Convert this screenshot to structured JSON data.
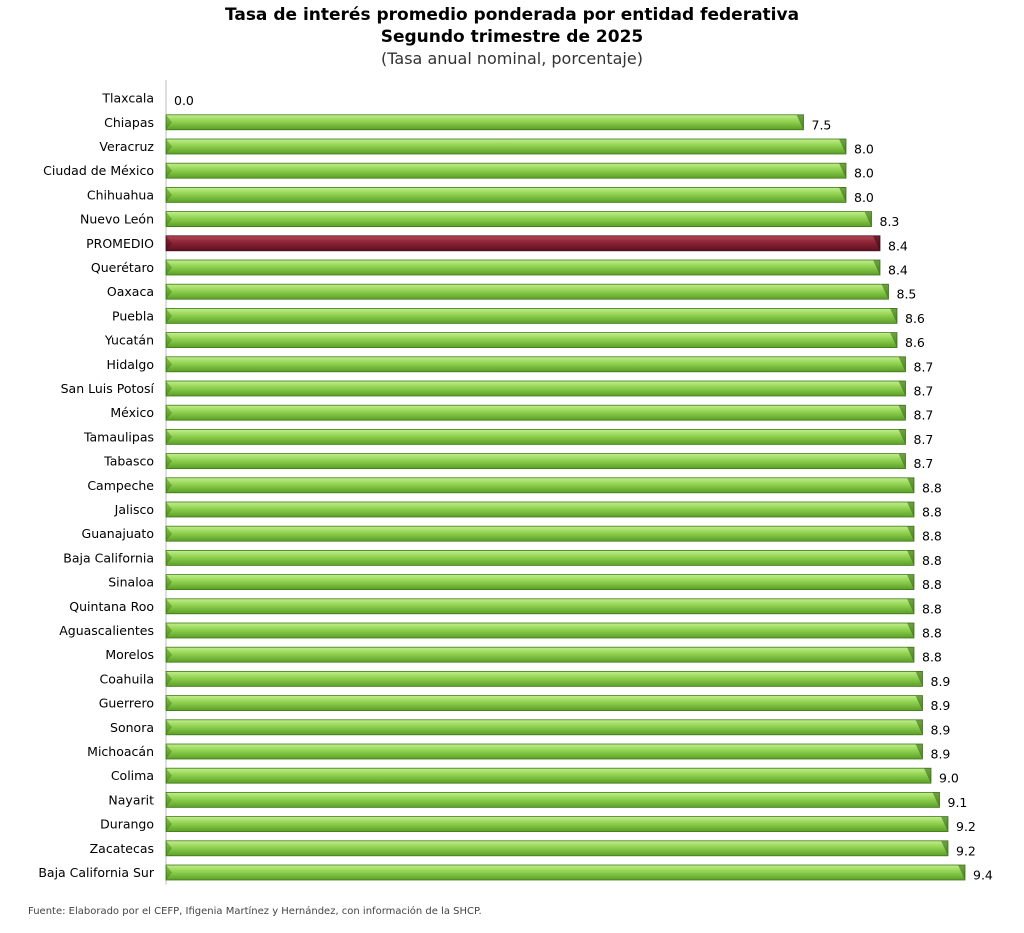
{
  "chart_data": {
    "type": "bar",
    "orientation": "horizontal",
    "title": "Tasa de interés promedio ponderada por entidad federativa",
    "subtitle": "Segundo trimestre de 2025",
    "units_note": "(Tasa anual nominal, porcentaje)",
    "categories": [
      "Tlaxcala",
      "Chiapas",
      "Veracruz",
      "Ciudad de México",
      "Chihuahua",
      "Nuevo León",
      "PROMEDIO",
      "Querétaro",
      "Oaxaca",
      "Puebla",
      "Yucatán",
      "Hidalgo",
      "San Luis Potosí",
      "México",
      "Tamaulipas",
      "Tabasco",
      "Campeche",
      "Jalisco",
      "Guanajuato",
      "Baja California",
      "Sinaloa",
      "Quintana Roo",
      "Aguascalientes",
      "Morelos",
      "Coahuila",
      "Guerrero",
      "Sonora",
      "Michoacán",
      "Colima",
      "Nayarit",
      "Durango",
      "Zacatecas",
      "Baja California Sur"
    ],
    "values": [
      0.0,
      7.5,
      8.0,
      8.0,
      8.0,
      8.3,
      8.4,
      8.4,
      8.5,
      8.6,
      8.6,
      8.7,
      8.7,
      8.7,
      8.7,
      8.7,
      8.8,
      8.8,
      8.8,
      8.8,
      8.8,
      8.8,
      8.8,
      8.8,
      8.9,
      8.9,
      8.9,
      8.9,
      9.0,
      9.1,
      9.2,
      9.2,
      9.4
    ],
    "value_labels": [
      "0.0",
      "7.5",
      "8.0",
      "8.0",
      "8.0",
      "8.3",
      "8.4",
      "8.4",
      "8.5",
      "8.6",
      "8.6",
      "8.7",
      "8.7",
      "8.7",
      "8.7",
      "8.7",
      "8.8",
      "8.8",
      "8.8",
      "8.8",
      "8.8",
      "8.8",
      "8.8",
      "8.8",
      "8.9",
      "8.9",
      "8.9",
      "8.9",
      "9.0",
      "9.1",
      "9.2",
      "9.2",
      "9.4"
    ],
    "highlight_category": "PROMEDIO",
    "xlim": [
      0,
      9.4
    ],
    "grid": false,
    "legend": "none",
    "colors": {
      "bar": "#8fd14f",
      "bar_dark": "#3f7a17",
      "highlight": "#8b2335",
      "highlight_dark": "#4a0f1a",
      "axis": "#bdbdbd"
    }
  },
  "source": "Fuente: Elaborado por el CEFP, Ifigenia Martínez y Hernández, con información de la SHCP."
}
